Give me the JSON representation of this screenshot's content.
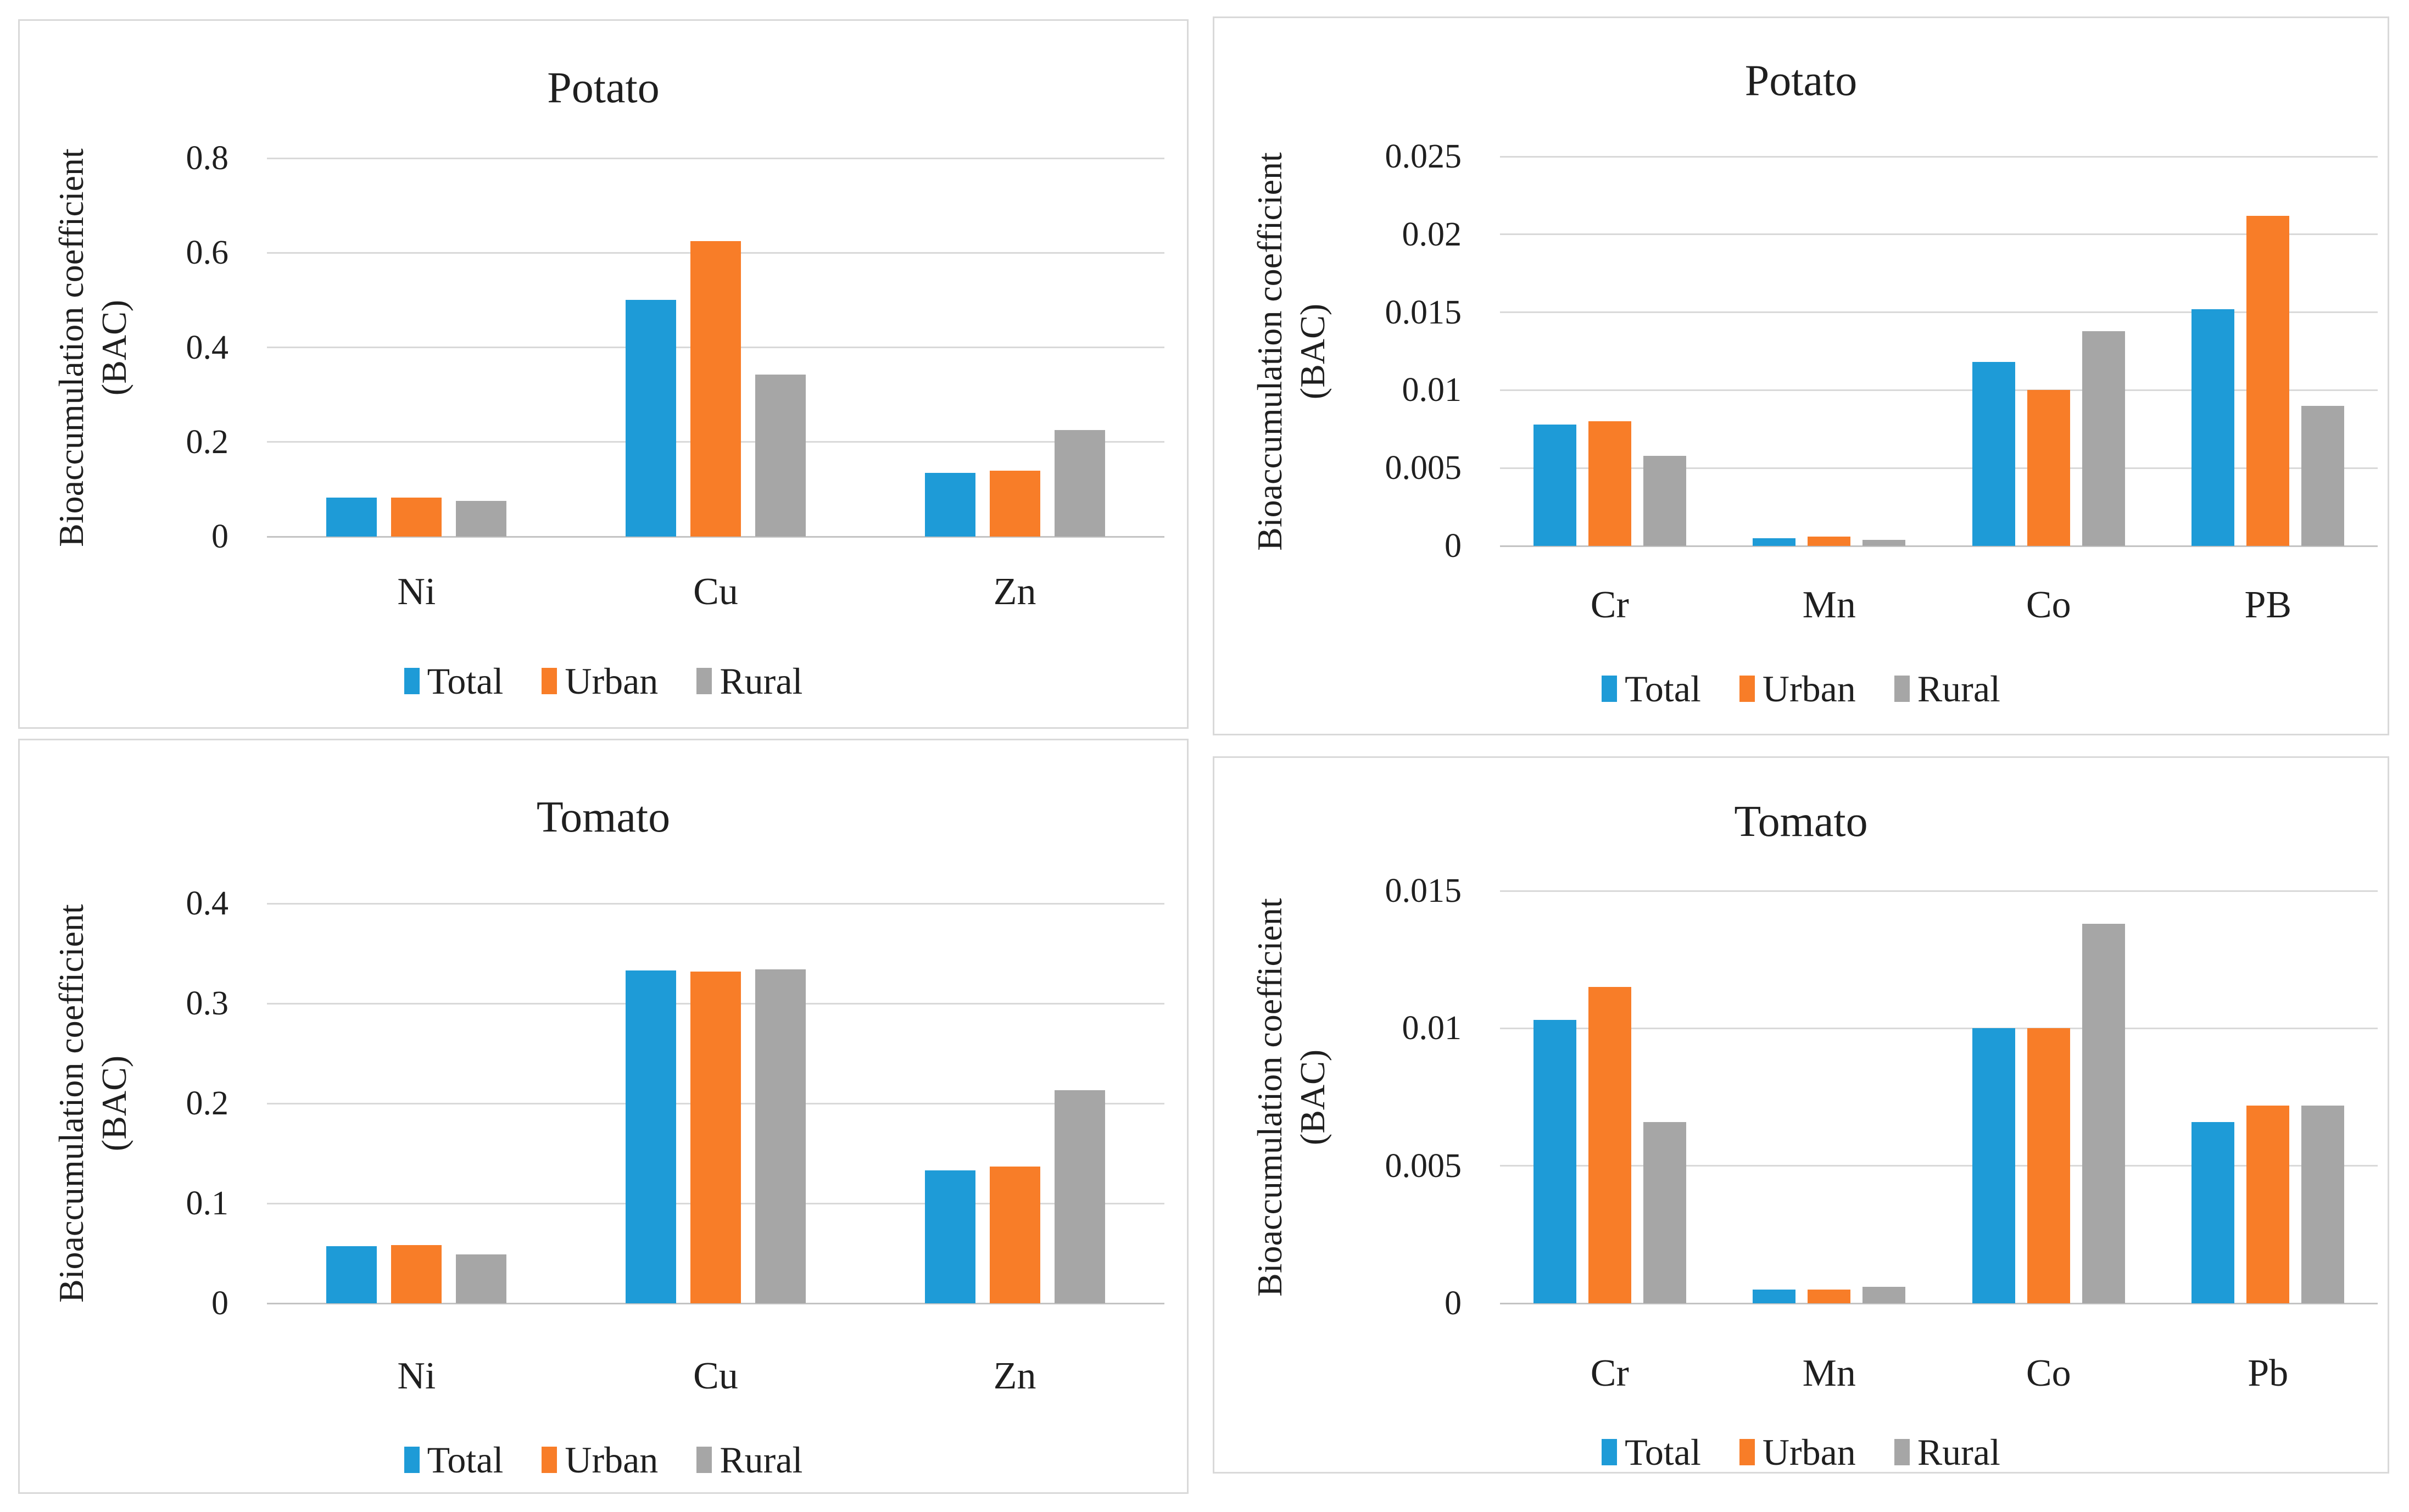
{
  "page": {
    "background": "#ffffff",
    "panel_border_color": "#d9d9d9",
    "gridline_color": "#d9d9d9",
    "axis_line_color": "#c3c3c3",
    "text_color": "#1f1f1f"
  },
  "series_colors": {
    "total": "#1e9bd7",
    "urban": "#f87d28",
    "rural": "#a6a6a6"
  },
  "chart_data": [
    {
      "type": "bar",
      "title": "Potato",
      "ylabel_line1": "Bioaccumulation coefficient",
      "ylabel_line2": "(BAC)",
      "categories": [
        "Ni",
        "Cu",
        "Zn"
      ],
      "series": [
        {
          "name": "Total",
          "color": "#1e9bd7",
          "values": [
            0.083,
            0.5,
            0.135
          ]
        },
        {
          "name": "Urban",
          "color": "#f87d28",
          "values": [
            0.083,
            0.625,
            0.139
          ]
        },
        {
          "name": "Rural",
          "color": "#a6a6a6",
          "values": [
            0.076,
            0.342,
            0.225
          ]
        }
      ],
      "ylim": [
        0,
        0.8
      ],
      "yticks": [
        {
          "label": "0.8",
          "value": 0.8
        },
        {
          "label": "0.6",
          "value": 0.6
        },
        {
          "label": "0.4",
          "value": 0.4
        },
        {
          "label": "0.2",
          "value": 0.2
        },
        {
          "label": "0",
          "value": 0
        }
      ],
      "grid": true,
      "legend_position": "bottom",
      "legend": [
        "Total",
        "Urban",
        "Rural"
      ]
    },
    {
      "type": "bar",
      "title": "Potato",
      "ylabel_line1": "Bioaccumulation coefficient",
      "ylabel_line2": "(BAC)",
      "categories": [
        "Cr",
        "Mn",
        "Co",
        "PB"
      ],
      "series": [
        {
          "name": "Total",
          "color": "#1e9bd7",
          "values": [
            0.0078,
            0.0005,
            0.0118,
            0.0152
          ]
        },
        {
          "name": "Urban",
          "color": "#f87d28",
          "values": [
            0.008,
            0.0006,
            0.01,
            0.0212
          ]
        },
        {
          "name": "Rural",
          "color": "#a6a6a6",
          "values": [
            0.0058,
            0.0004,
            0.0138,
            0.009
          ]
        }
      ],
      "ylim": [
        0,
        0.025
      ],
      "yticks": [
        {
          "label": "0.025",
          "value": 0.025
        },
        {
          "label": "0.02",
          "value": 0.02
        },
        {
          "label": "0.015",
          "value": 0.015
        },
        {
          "label": "0.01",
          "value": 0.01
        },
        {
          "label": "0.005",
          "value": 0.005
        },
        {
          "label": "0",
          "value": 0
        }
      ],
      "grid": true,
      "legend_position": "bottom",
      "legend": [
        "Total",
        "Urban",
        "Rural"
      ]
    },
    {
      "type": "bar",
      "title": "Tomato",
      "ylabel_line1": "Bioaccumulation coefficient",
      "ylabel_line2": "(BAC)",
      "categories": [
        "Ni",
        "Cu",
        "Zn"
      ],
      "series": [
        {
          "name": "Total",
          "color": "#1e9bd7",
          "values": [
            0.057,
            0.333,
            0.133
          ]
        },
        {
          "name": "Urban",
          "color": "#f87d28",
          "values": [
            0.058,
            0.332,
            0.137
          ]
        },
        {
          "name": "Rural",
          "color": "#a6a6a6",
          "values": [
            0.049,
            0.334,
            0.213
          ]
        }
      ],
      "ylim": [
        0,
        0.4
      ],
      "yticks": [
        {
          "label": "0.4",
          "value": 0.4
        },
        {
          "label": "0.3",
          "value": 0.3
        },
        {
          "label": "0.2",
          "value": 0.2
        },
        {
          "label": "0.1",
          "value": 0.1
        },
        {
          "label": "0",
          "value": 0
        }
      ],
      "grid": true,
      "legend_position": "bottom",
      "legend": [
        "Total",
        "Urban",
        "Rural"
      ]
    },
    {
      "type": "bar",
      "title": "Tomato",
      "ylabel_line1": "Bioaccumulation coefficient",
      "ylabel_line2": "(BAC)",
      "categories": [
        "Cr",
        "Mn",
        "Co",
        "Pb"
      ],
      "series": [
        {
          "name": "Total",
          "color": "#1e9bd7",
          "values": [
            0.0103,
            0.0005,
            0.01,
            0.0066
          ]
        },
        {
          "name": "Urban",
          "color": "#f87d28",
          "values": [
            0.0115,
            0.0005,
            0.01,
            0.0072
          ]
        },
        {
          "name": "Rural",
          "color": "#a6a6a6",
          "values": [
            0.0066,
            0.0006,
            0.0138,
            0.0072
          ]
        }
      ],
      "ylim": [
        0,
        0.015
      ],
      "yticks": [
        {
          "label": "0.015",
          "value": 0.015
        },
        {
          "label": "0.01",
          "value": 0.01
        },
        {
          "label": "0.005",
          "value": 0.005
        },
        {
          "label": "0",
          "value": 0
        }
      ],
      "grid": true,
      "legend_position": "bottom",
      "legend": [
        "Total",
        "Urban",
        "Rural"
      ]
    }
  ]
}
